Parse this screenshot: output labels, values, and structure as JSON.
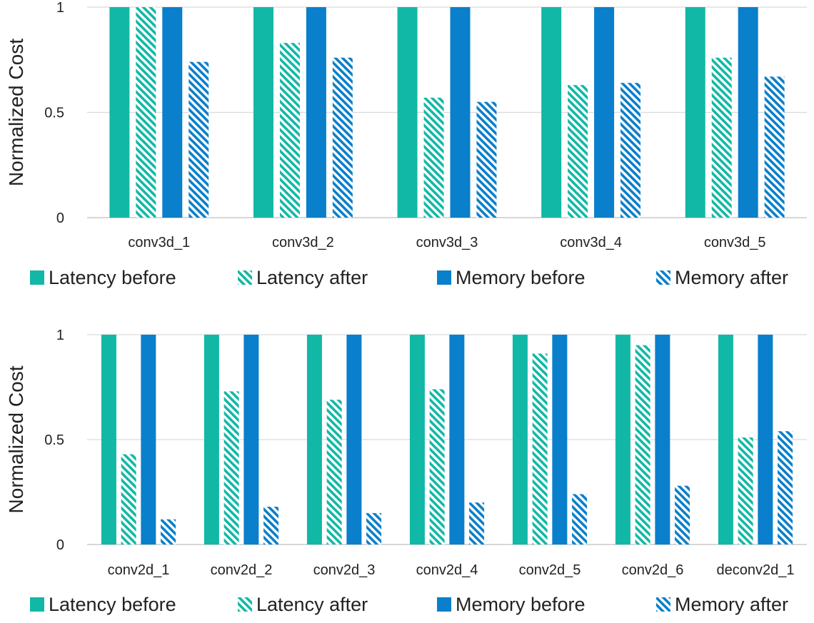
{
  "colors": {
    "latency": "#12B8A6",
    "memory": "#0A7FCB",
    "grid": "#D9D9D9",
    "axis": "#BFBFBF",
    "text": "#222222"
  },
  "legend": [
    {
      "label": "Latency before",
      "color": "latency",
      "pattern": "solid"
    },
    {
      "label": "Latency after",
      "color": "latency",
      "pattern": "hatched"
    },
    {
      "label": "Memory before",
      "color": "memory",
      "pattern": "solid"
    },
    {
      "label": "Memory after",
      "color": "memory",
      "pattern": "hatched"
    }
  ],
  "chart_data": [
    {
      "type": "bar",
      "ylabel": "Normalized Cost",
      "ylim": [
        0,
        1
      ],
      "yticks": [
        "0",
        "0.5",
        "1"
      ],
      "grid": true,
      "legend_position": "bottom",
      "categories": [
        "conv3d_1",
        "conv3d_2",
        "conv3d_3",
        "conv3d_4",
        "conv3d_5"
      ],
      "series": [
        {
          "name": "Latency before",
          "values": [
            1,
            1,
            1,
            1,
            1
          ]
        },
        {
          "name": "Latency after",
          "values": [
            1.0,
            0.83,
            0.57,
            0.63,
            0.76
          ]
        },
        {
          "name": "Memory before",
          "values": [
            1,
            1,
            1,
            1,
            1
          ]
        },
        {
          "name": "Memory after",
          "values": [
            0.74,
            0.76,
            0.55,
            0.64,
            0.67
          ]
        }
      ]
    },
    {
      "type": "bar",
      "ylabel": "Normalized Cost",
      "ylim": [
        0,
        1
      ],
      "yticks": [
        "0",
        "0.5",
        "1"
      ],
      "grid": true,
      "legend_position": "bottom",
      "categories": [
        "conv2d_1",
        "conv2d_2",
        "conv2d_3",
        "conv2d_4",
        "conv2d_5",
        "conv2d_6",
        "deconv2d_1"
      ],
      "series": [
        {
          "name": "Latency before",
          "values": [
            1,
            1,
            1,
            1,
            1,
            1,
            1
          ]
        },
        {
          "name": "Latency after",
          "values": [
            0.43,
            0.73,
            0.69,
            0.74,
            0.91,
            0.95,
            0.51
          ]
        },
        {
          "name": "Memory before",
          "values": [
            1,
            1,
            1,
            1,
            1,
            1,
            1
          ]
        },
        {
          "name": "Memory after",
          "values": [
            0.12,
            0.18,
            0.15,
            0.2,
            0.24,
            0.28,
            0.54
          ]
        }
      ]
    }
  ]
}
